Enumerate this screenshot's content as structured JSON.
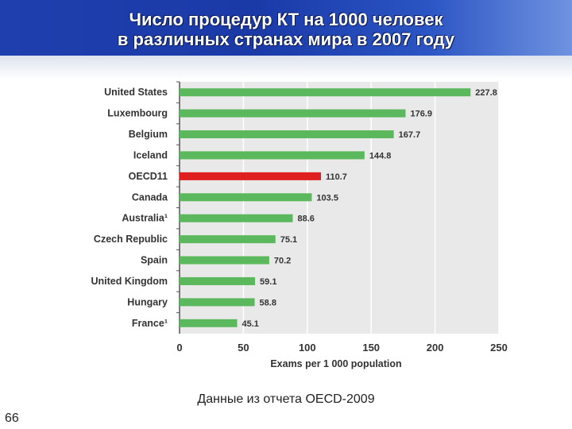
{
  "title_lines": [
    "Число процедур КТ на 1000 человек",
    "в различных странах мира в 2007 году"
  ],
  "source_note": "Данные из отчета OECD-2009",
  "page_number": "66",
  "colors": {
    "bar": "#5cb85c",
    "highlight": "#e02020",
    "plot_bg": "#e9e9e9"
  },
  "chart_data": {
    "type": "bar",
    "orientation": "horizontal",
    "categories": [
      "United States",
      "Luxembourg",
      "Belgium",
      "Iceland",
      "OECD11",
      "Canada",
      "Australia¹",
      "Czech Republic",
      "Spain",
      "United Kingdom",
      "Hungary",
      "France¹"
    ],
    "values": [
      227.8,
      176.9,
      167.7,
      144.8,
      110.7,
      103.5,
      88.6,
      75.1,
      70.2,
      59.1,
      58.8,
      45.1
    ],
    "value_labels": [
      "227.8",
      "176.9",
      "167.7",
      "144.8",
      "110.7",
      "103.5",
      "88.6",
      "75.1",
      "70.2",
      "59.1",
      "58.8",
      "45.1"
    ],
    "highlight_category": "OECD11",
    "xlim": [
      0,
      250
    ],
    "xticks": [
      "0",
      "50",
      "100",
      "150",
      "200",
      "250"
    ],
    "xlabel": "Exams per 1 000 population",
    "ylabel": "",
    "grid": true
  }
}
